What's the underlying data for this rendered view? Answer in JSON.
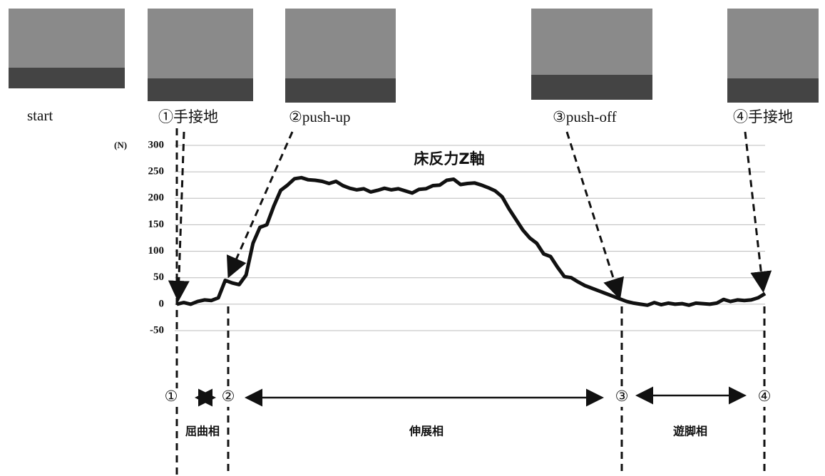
{
  "chart_data": {
    "type": "line",
    "title": "床反力Z軸",
    "y_unit": "(N)",
    "photo_labels": [
      "start",
      "①手接地",
      "②push-up",
      "③push-off",
      "④手接地"
    ],
    "phase_markers": [
      "①",
      "②",
      "③",
      "④"
    ],
    "phases": [
      "屈曲相",
      "伸展相",
      "遊脚相"
    ],
    "ylim": [
      -50,
      300
    ],
    "yticks": [
      -50,
      0,
      50,
      100,
      150,
      200,
      250,
      300
    ],
    "grid": true,
    "color": "#111111",
    "values": [
      0,
      3,
      0,
      5,
      8,
      7,
      12,
      45,
      40,
      37,
      55,
      115,
      145,
      150,
      185,
      215,
      225,
      237,
      239,
      235,
      234,
      232,
      228,
      232,
      224,
      219,
      216,
      218,
      212,
      215,
      219,
      216,
      218,
      214,
      210,
      217,
      218,
      224,
      225,
      234,
      236,
      226,
      228,
      229,
      225,
      220,
      214,
      203,
      180,
      160,
      140,
      125,
      115,
      95,
      90,
      70,
      52,
      50,
      42,
      35,
      30,
      25,
      20,
      15,
      10,
      5,
      2,
      0,
      -2,
      3,
      -1,
      2,
      0,
      1,
      -2,
      2,
      1,
      0,
      2,
      9,
      5,
      8,
      7,
      8,
      12,
      20
    ]
  }
}
